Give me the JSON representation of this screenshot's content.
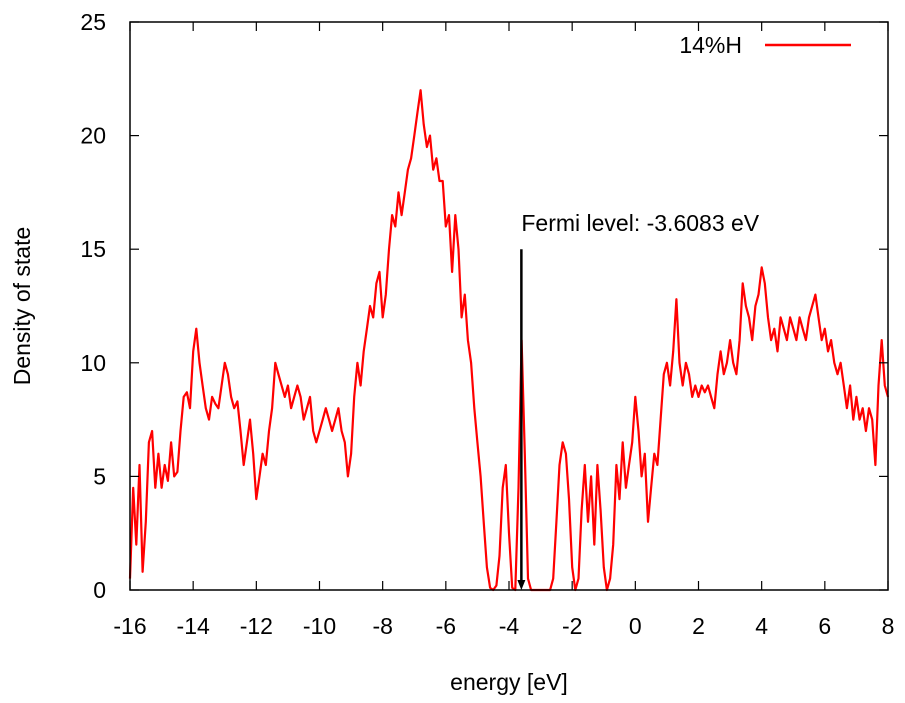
{
  "chart_data": {
    "type": "line",
    "xlabel": "energy [eV]",
    "ylabel": "Density of state",
    "xlim": [
      -16,
      8
    ],
    "ylim": [
      0,
      25
    ],
    "xticks": [
      -16,
      -14,
      -12,
      -10,
      -8,
      -6,
      -4,
      -2,
      0,
      2,
      4,
      6,
      8
    ],
    "yticks": [
      0,
      5,
      10,
      15,
      20,
      25
    ],
    "grid": false,
    "legend_position": "top-right",
    "series": [
      {
        "name": "14%H",
        "color": "#ff0000",
        "points": [
          [
            -16.0,
            0.5
          ],
          [
            -15.9,
            4.5
          ],
          [
            -15.8,
            2.0
          ],
          [
            -15.7,
            5.5
          ],
          [
            -15.6,
            0.8
          ],
          [
            -15.5,
            3.0
          ],
          [
            -15.4,
            6.5
          ],
          [
            -15.3,
            7.0
          ],
          [
            -15.2,
            4.5
          ],
          [
            -15.1,
            6.0
          ],
          [
            -15.0,
            4.5
          ],
          [
            -14.9,
            5.5
          ],
          [
            -14.8,
            4.8
          ],
          [
            -14.7,
            6.5
          ],
          [
            -14.6,
            5.0
          ],
          [
            -14.5,
            5.2
          ],
          [
            -14.4,
            7.0
          ],
          [
            -14.3,
            8.5
          ],
          [
            -14.2,
            8.7
          ],
          [
            -14.1,
            8.0
          ],
          [
            -14.0,
            10.5
          ],
          [
            -13.9,
            11.5
          ],
          [
            -13.8,
            10.0
          ],
          [
            -13.7,
            9.0
          ],
          [
            -13.6,
            8.0
          ],
          [
            -13.5,
            7.5
          ],
          [
            -13.4,
            8.5
          ],
          [
            -13.3,
            8.2
          ],
          [
            -13.2,
            8.0
          ],
          [
            -13.1,
            9.0
          ],
          [
            -13.0,
            10.0
          ],
          [
            -12.9,
            9.5
          ],
          [
            -12.8,
            8.5
          ],
          [
            -12.7,
            8.0
          ],
          [
            -12.6,
            8.3
          ],
          [
            -12.5,
            7.0
          ],
          [
            -12.4,
            5.5
          ],
          [
            -12.3,
            6.5
          ],
          [
            -12.2,
            7.5
          ],
          [
            -12.1,
            6.0
          ],
          [
            -12.0,
            4.0
          ],
          [
            -11.9,
            5.0
          ],
          [
            -11.8,
            6.0
          ],
          [
            -11.7,
            5.5
          ],
          [
            -11.6,
            7.0
          ],
          [
            -11.5,
            8.0
          ],
          [
            -11.4,
            10.0
          ],
          [
            -11.3,
            9.5
          ],
          [
            -11.2,
            9.0
          ],
          [
            -11.1,
            8.5
          ],
          [
            -11.0,
            9.0
          ],
          [
            -10.9,
            8.0
          ],
          [
            -10.8,
            8.5
          ],
          [
            -10.7,
            9.0
          ],
          [
            -10.6,
            8.5
          ],
          [
            -10.5,
            7.5
          ],
          [
            -10.4,
            8.0
          ],
          [
            -10.3,
            8.5
          ],
          [
            -10.2,
            7.0
          ],
          [
            -10.1,
            6.5
          ],
          [
            -10.0,
            7.0
          ],
          [
            -9.9,
            7.5
          ],
          [
            -9.8,
            8.0
          ],
          [
            -9.7,
            7.5
          ],
          [
            -9.6,
            7.0
          ],
          [
            -9.5,
            7.5
          ],
          [
            -9.4,
            8.0
          ],
          [
            -9.3,
            7.0
          ],
          [
            -9.2,
            6.5
          ],
          [
            -9.1,
            5.0
          ],
          [
            -9.0,
            6.0
          ],
          [
            -8.9,
            8.5
          ],
          [
            -8.8,
            10.0
          ],
          [
            -8.7,
            9.0
          ],
          [
            -8.6,
            10.5
          ],
          [
            -8.5,
            11.5
          ],
          [
            -8.4,
            12.5
          ],
          [
            -8.3,
            12.0
          ],
          [
            -8.2,
            13.5
          ],
          [
            -8.1,
            14.0
          ],
          [
            -8.0,
            12.0
          ],
          [
            -7.9,
            13.0
          ],
          [
            -7.8,
            15.0
          ],
          [
            -7.7,
            16.5
          ],
          [
            -7.6,
            16.0
          ],
          [
            -7.5,
            17.5
          ],
          [
            -7.4,
            16.5
          ],
          [
            -7.3,
            17.5
          ],
          [
            -7.2,
            18.5
          ],
          [
            -7.1,
            19.0
          ],
          [
            -7.0,
            20.0
          ],
          [
            -6.9,
            21.0
          ],
          [
            -6.8,
            22.0
          ],
          [
            -6.7,
            20.5
          ],
          [
            -6.6,
            19.5
          ],
          [
            -6.5,
            20.0
          ],
          [
            -6.4,
            18.5
          ],
          [
            -6.3,
            19.0
          ],
          [
            -6.2,
            18.0
          ],
          [
            -6.1,
            18.0
          ],
          [
            -6.0,
            16.0
          ],
          [
            -5.9,
            16.5
          ],
          [
            -5.8,
            14.0
          ],
          [
            -5.7,
            16.5
          ],
          [
            -5.6,
            15.0
          ],
          [
            -5.5,
            12.0
          ],
          [
            -5.4,
            13.0
          ],
          [
            -5.3,
            11.0
          ],
          [
            -5.2,
            10.0
          ],
          [
            -5.1,
            8.0
          ],
          [
            -5.0,
            6.5
          ],
          [
            -4.9,
            5.0
          ],
          [
            -4.8,
            3.0
          ],
          [
            -4.7,
            1.0
          ],
          [
            -4.6,
            0.1
          ],
          [
            -4.5,
            0.0
          ],
          [
            -4.4,
            0.2
          ],
          [
            -4.3,
            1.5
          ],
          [
            -4.2,
            4.5
          ],
          [
            -4.1,
            5.5
          ],
          [
            -4.0,
            2.5
          ],
          [
            -3.9,
            0.1
          ],
          [
            -3.8,
            0.0
          ],
          [
            -3.7,
            4.5
          ],
          [
            -3.6,
            11.0
          ],
          [
            -3.5,
            6.0
          ],
          [
            -3.4,
            0.5
          ],
          [
            -3.3,
            0.0
          ],
          [
            -3.2,
            0.0
          ],
          [
            -3.1,
            0.0
          ],
          [
            -3.0,
            0.0
          ],
          [
            -2.9,
            0.0
          ],
          [
            -2.8,
            0.0
          ],
          [
            -2.7,
            0.0
          ],
          [
            -2.6,
            0.5
          ],
          [
            -2.5,
            3.0
          ],
          [
            -2.4,
            5.5
          ],
          [
            -2.3,
            6.5
          ],
          [
            -2.2,
            6.0
          ],
          [
            -2.1,
            4.0
          ],
          [
            -2.0,
            1.0
          ],
          [
            -1.9,
            0.0
          ],
          [
            -1.8,
            0.5
          ],
          [
            -1.7,
            3.5
          ],
          [
            -1.6,
            5.5
          ],
          [
            -1.5,
            3.0
          ],
          [
            -1.4,
            5.0
          ],
          [
            -1.3,
            2.0
          ],
          [
            -1.2,
            5.5
          ],
          [
            -1.1,
            3.5
          ],
          [
            -1.0,
            1.0
          ],
          [
            -0.9,
            0.0
          ],
          [
            -0.8,
            0.5
          ],
          [
            -0.7,
            2.0
          ],
          [
            -0.6,
            5.5
          ],
          [
            -0.5,
            4.0
          ],
          [
            -0.4,
            6.5
          ],
          [
            -0.3,
            4.5
          ],
          [
            -0.2,
            5.5
          ],
          [
            -0.1,
            6.5
          ],
          [
            0.0,
            8.5
          ],
          [
            0.1,
            7.0
          ],
          [
            0.2,
            5.0
          ],
          [
            0.3,
            6.0
          ],
          [
            0.4,
            3.0
          ],
          [
            0.5,
            4.5
          ],
          [
            0.6,
            6.0
          ],
          [
            0.7,
            5.5
          ],
          [
            0.8,
            7.5
          ],
          [
            0.9,
            9.5
          ],
          [
            1.0,
            10.0
          ],
          [
            1.1,
            9.0
          ],
          [
            1.2,
            10.5
          ],
          [
            1.3,
            12.8
          ],
          [
            1.4,
            10.0
          ],
          [
            1.5,
            9.0
          ],
          [
            1.6,
            10.0
          ],
          [
            1.7,
            9.5
          ],
          [
            1.8,
            8.5
          ],
          [
            1.9,
            9.0
          ],
          [
            2.0,
            8.5
          ],
          [
            2.1,
            9.0
          ],
          [
            2.2,
            8.7
          ],
          [
            2.3,
            9.0
          ],
          [
            2.4,
            8.5
          ],
          [
            2.5,
            8.0
          ],
          [
            2.6,
            9.5
          ],
          [
            2.7,
            10.5
          ],
          [
            2.8,
            9.5
          ],
          [
            2.9,
            10.0
          ],
          [
            3.0,
            11.0
          ],
          [
            3.1,
            10.0
          ],
          [
            3.2,
            9.5
          ],
          [
            3.3,
            11.0
          ],
          [
            3.4,
            13.5
          ],
          [
            3.5,
            12.5
          ],
          [
            3.6,
            12.0
          ],
          [
            3.7,
            11.0
          ],
          [
            3.8,
            12.5
          ],
          [
            3.9,
            13.0
          ],
          [
            4.0,
            14.2
          ],
          [
            4.1,
            13.5
          ],
          [
            4.2,
            12.0
          ],
          [
            4.3,
            11.0
          ],
          [
            4.4,
            11.5
          ],
          [
            4.5,
            10.5
          ],
          [
            4.6,
            12.0
          ],
          [
            4.7,
            11.5
          ],
          [
            4.8,
            11.0
          ],
          [
            4.9,
            12.0
          ],
          [
            5.0,
            11.5
          ],
          [
            5.1,
            11.0
          ],
          [
            5.2,
            12.0
          ],
          [
            5.3,
            11.5
          ],
          [
            5.4,
            11.0
          ],
          [
            5.5,
            12.0
          ],
          [
            5.6,
            12.5
          ],
          [
            5.7,
            13.0
          ],
          [
            5.8,
            12.0
          ],
          [
            5.9,
            11.0
          ],
          [
            6.0,
            11.5
          ],
          [
            6.1,
            10.5
          ],
          [
            6.2,
            11.0
          ],
          [
            6.3,
            10.0
          ],
          [
            6.4,
            9.5
          ],
          [
            6.5,
            10.0
          ],
          [
            6.6,
            9.0
          ],
          [
            6.7,
            8.0
          ],
          [
            6.8,
            9.0
          ],
          [
            6.9,
            7.5
          ],
          [
            7.0,
            8.5
          ],
          [
            7.1,
            7.5
          ],
          [
            7.2,
            8.0
          ],
          [
            7.3,
            7.0
          ],
          [
            7.4,
            8.0
          ],
          [
            7.5,
            7.5
          ],
          [
            7.6,
            5.5
          ],
          [
            7.7,
            9.0
          ],
          [
            7.8,
            11.0
          ],
          [
            7.9,
            9.0
          ],
          [
            8.0,
            8.5
          ]
        ]
      }
    ],
    "annotations": [
      {
        "text": "Fermi level: -3.6083 eV",
        "x": -3.6083,
        "y_top": 15,
        "y_bottom": 0
      }
    ]
  }
}
